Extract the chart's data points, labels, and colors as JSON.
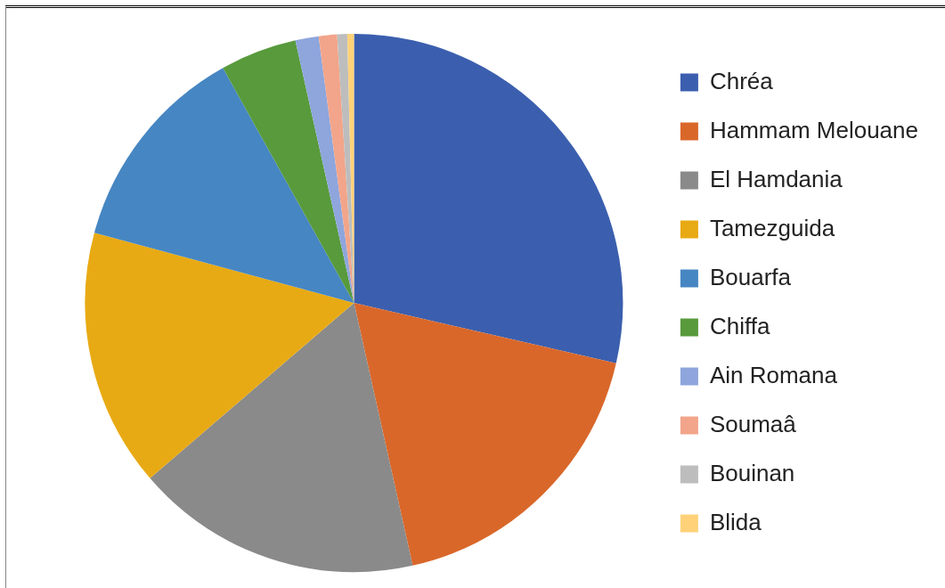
{
  "chart_data": {
    "type": "pie",
    "categories": [
      "Chréa",
      "Hammam Melouane",
      "El Hamdania",
      "Tamezguida",
      "Bouarfa",
      "Chiffa",
      "Ain Romana",
      "Soumaâ",
      "Bouinan",
      "Blida"
    ],
    "values": [
      28.6,
      17.9,
      17.2,
      15.5,
      12.7,
      4.6,
      1.4,
      1.1,
      0.6,
      0.4
    ],
    "colors": [
      "#3b5fae",
      "#d9672a",
      "#8a8a8a",
      "#e8aa14",
      "#4686c2",
      "#589a3c",
      "#8ea6dc",
      "#f2a58a",
      "#bdbdbd",
      "#ffd27a"
    ],
    "legend": "right"
  }
}
